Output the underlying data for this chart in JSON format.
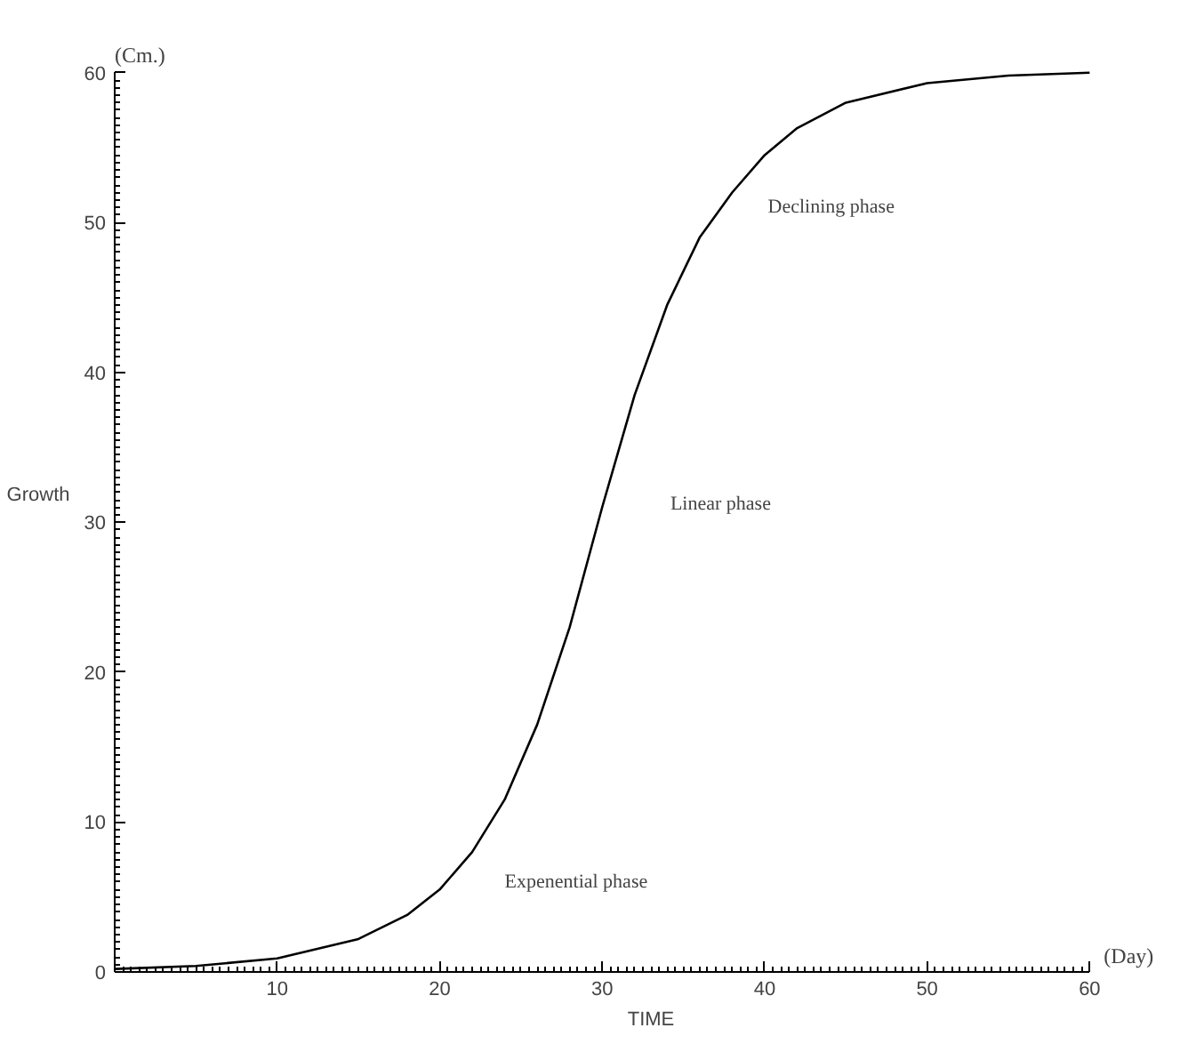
{
  "chart_data": {
    "type": "line",
    "xlabel": "TIME",
    "ylabel": "Growth",
    "x": [
      0,
      5,
      10,
      15,
      18,
      20,
      22,
      24,
      26,
      28,
      30,
      32,
      34,
      36,
      38,
      40,
      42,
      45,
      50,
      55,
      60
    ],
    "series": [
      {
        "color": "#000000",
        "values": [
          0.2,
          0.4,
          0.9,
          2.2,
          3.8,
          5.5,
          8,
          11.5,
          16.5,
          23,
          31,
          38.5,
          44.5,
          49,
          52,
          54.5,
          56.3,
          58,
          59.3,
          59.8,
          60
        ]
      }
    ],
    "xlim": [
      0,
      60
    ],
    "ylim": [
      0,
      60
    ],
    "xticks": [
      10,
      20,
      30,
      40,
      50,
      60
    ],
    "yticks": [
      0,
      10,
      20,
      30,
      40,
      50,
      60
    ],
    "grid": false,
    "marker": "none",
    "line_style": "solid",
    "annotations": [
      "(Cm.)",
      "(Day)",
      "Expenential phase",
      "Linear phase",
      "Declining phase"
    ]
  }
}
